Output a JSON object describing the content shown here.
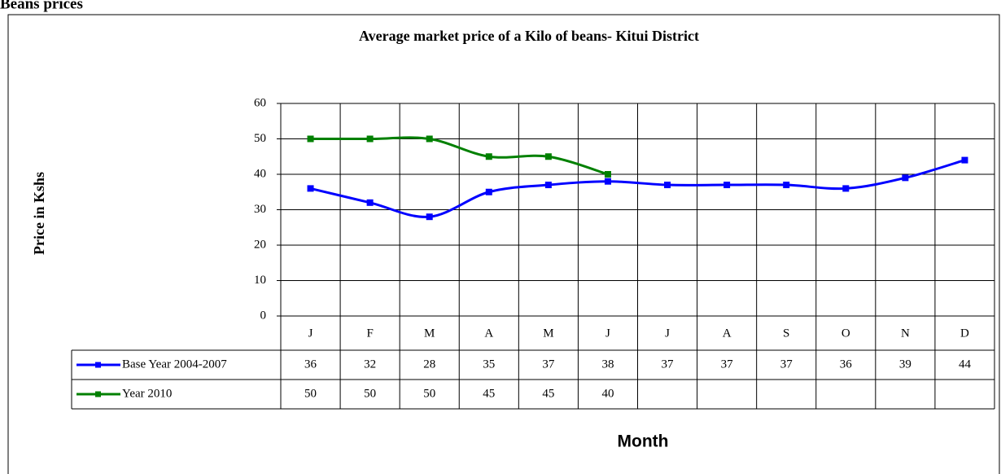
{
  "heading": "Beans prices",
  "chart_data": {
    "type": "line",
    "title": "Average market price of a Kilo of beans- Kitui District",
    "ylabel": "Price in Kshs",
    "xlabel": "Month",
    "categories": [
      "J",
      "F",
      "M",
      "A",
      "M",
      "J",
      "J",
      "A",
      "S",
      "O",
      "N",
      "D"
    ],
    "series": [
      {
        "name": "Base Year 2004-2007",
        "color": "#0000ff",
        "values": [
          36,
          32,
          28,
          35,
          37,
          38,
          37,
          37,
          37,
          36,
          39,
          44
        ]
      },
      {
        "name": "Year 2010",
        "color": "#008000",
        "values": [
          50,
          50,
          50,
          45,
          45,
          40,
          null,
          null,
          null,
          null,
          null,
          null
        ]
      }
    ],
    "ylim": [
      0,
      60
    ],
    "yticks": [
      0,
      10,
      20,
      30,
      40,
      50,
      60
    ],
    "grid": true
  }
}
